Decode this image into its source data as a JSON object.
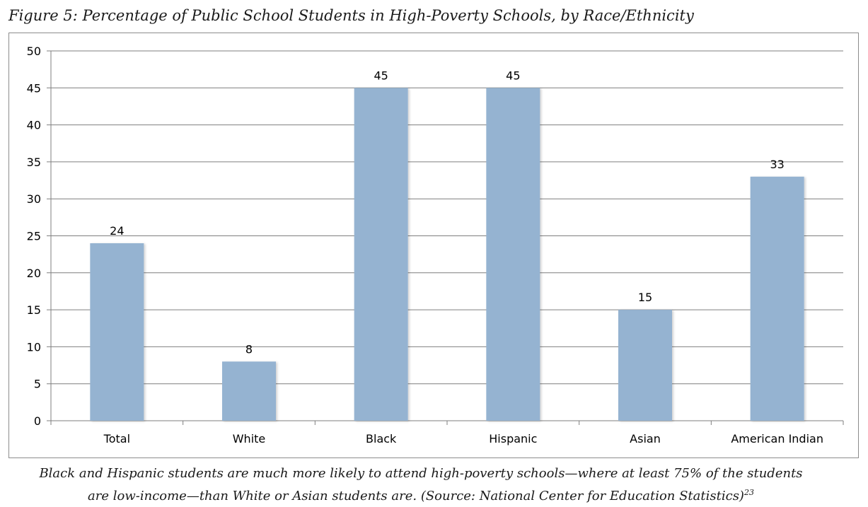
{
  "chart_data": {
    "type": "bar",
    "title": "Figure 5: Percentage of Public School Students in High-Poverty Schools, by Race/Ethnicity",
    "categories": [
      "Total",
      "White",
      "Black",
      "Hispanic",
      "Asian",
      "American Indian"
    ],
    "values": [
      24,
      8,
      45,
      45,
      15,
      33
    ],
    "xlabel": "",
    "ylabel": "",
    "ylim": [
      0,
      50
    ],
    "yticks": [
      0,
      5,
      10,
      15,
      20,
      25,
      30,
      35,
      40,
      45,
      50
    ],
    "grid": true,
    "data_labels": true,
    "bar_color": "#95b3d1"
  },
  "caption": {
    "line1": "Black and Hispanic students are much more likely to attend high-poverty schools—where at least 75% of the students",
    "line2": "are low-income—than White or Asian students are. (Source: National Center for Education Statistics)",
    "footnote": "23"
  }
}
